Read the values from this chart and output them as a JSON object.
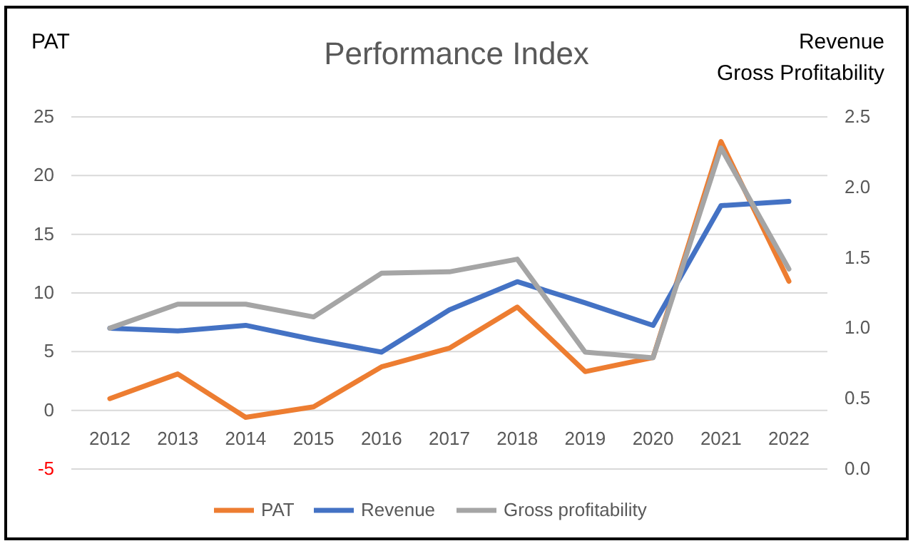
{
  "chart_data": {
    "type": "line",
    "title": "Performance Index",
    "ylabel": "PAT",
    "y2label": "Revenue\nGross Profitability",
    "categories": [
      "2012",
      "2013",
      "2014",
      "2015",
      "2016",
      "2017",
      "2018",
      "2019",
      "2020",
      "2021",
      "2022"
    ],
    "series": [
      {
        "name": "PAT",
        "color": "#ed7d31",
        "values": [
          1.0,
          3.1,
          -0.6,
          0.3,
          3.7,
          5.3,
          8.8,
          3.3,
          4.5,
          22.9,
          11.0
        ]
      },
      {
        "name": "Revenue",
        "color": "#4472c4",
        "axis": "y2",
        "values": [
          1.0,
          0.98,
          1.02,
          0.92,
          0.83,
          1.13,
          1.33,
          1.18,
          1.02,
          1.87,
          1.9
        ]
      },
      {
        "name": "Gross profitability",
        "color": "#a5a5a5",
        "axis": "y2",
        "values": [
          1.0,
          1.17,
          1.17,
          1.08,
          1.39,
          1.4,
          1.49,
          0.83,
          0.79,
          2.28,
          1.42
        ]
      }
    ],
    "ylim": [
      -5,
      25
    ],
    "yticks": [
      -5,
      0,
      5,
      10,
      15,
      20,
      25
    ],
    "y2lim": [
      0,
      2.5
    ],
    "y2ticks": [
      {
        "value": 0,
        "label": "0.0"
      },
      {
        "value": 0.5,
        "label": "0.5"
      },
      {
        "value": 1,
        "label": "1.0"
      },
      {
        "value": 1.5,
        "label": "1.5"
      },
      {
        "value": 2,
        "label": "2.0"
      },
      {
        "value": 2.5,
        "label": "2.5"
      }
    ],
    "grid": "y",
    "legend": "bottom",
    "marker": "none",
    "line_style": "solid"
  }
}
